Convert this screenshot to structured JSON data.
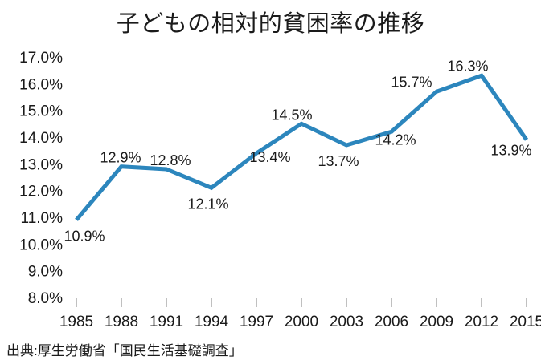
{
  "chart_data": {
    "type": "line",
    "title": "子どもの相対的貧困率の推移",
    "categories": [
      "1985",
      "1988",
      "1991",
      "1994",
      "1997",
      "2000",
      "2003",
      "2006",
      "2009",
      "2012",
      "2015"
    ],
    "values": [
      10.9,
      12.9,
      12.8,
      12.1,
      13.4,
      14.5,
      13.7,
      14.2,
      15.7,
      16.3,
      13.9
    ],
    "point_labels": [
      "10.9%",
      "12.9%",
      "12.8%",
      "12.1%",
      "13.4%",
      "14.5%",
      "13.7%",
      "14.2%",
      "15.7%",
      "16.3%",
      "13.9%"
    ],
    "y_ticks": [
      "17.0%",
      "16.0%",
      "15.0%",
      "14.0%",
      "13.0%",
      "12.0%",
      "11.0%",
      "10.0%",
      "9.0%",
      "8.0%"
    ],
    "ylim": [
      8.0,
      17.0
    ],
    "y_step": 1.0,
    "xlabel": "",
    "ylabel": "",
    "grid": "off",
    "legend": "none",
    "line_color": "#2C86BD",
    "text_color": "#1a1a1a",
    "tick_color": "#808080",
    "label_offsets": {
      "dx": [
        10,
        -1,
        5,
        -4,
        17,
        -12,
        -10,
        5,
        -31,
        -17,
        -19
      ],
      "dy": [
        26,
        -5,
        -5,
        26,
        11,
        -5,
        26,
        16,
        -6,
        -6,
        19
      ]
    },
    "source": "出典:厚生労働省「国民生活基礎調査」"
  }
}
